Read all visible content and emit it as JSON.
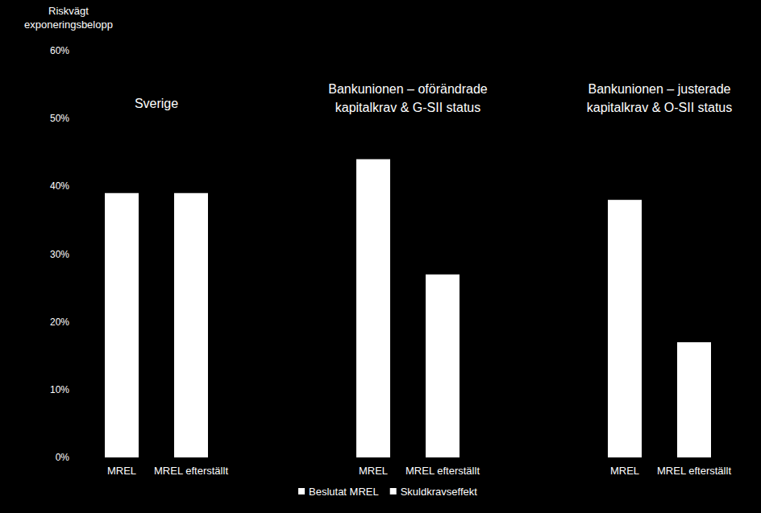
{
  "chart_data": {
    "type": "bar",
    "y_label": "Riskvägt exponeringsbelopp",
    "groups": [
      [
        "Sverige"
      ],
      [
        "Bankunionen – oförändrade",
        "kapitalkrav & G-SII status"
      ],
      [
        "Bankunionen – justerade",
        "kapitalkrav & O-SII status"
      ]
    ],
    "categories": [
      "MREL",
      "MREL efterställt",
      "MREL",
      "MREL efterställt",
      "MREL",
      "MREL efterställt"
    ],
    "series": [
      {
        "name": "Beslutat MREL",
        "color": "#ffffff",
        "values": [
          39,
          39,
          44,
          27,
          38,
          17
        ]
      },
      {
        "name": "Skuldkravseffekt",
        "color": "#ffffff",
        "values": [
          null,
          null,
          null,
          null,
          null,
          null
        ]
      }
    ],
    "stacked": true,
    "ylim": [
      0,
      60
    ],
    "yticks": [
      {
        "value": 0,
        "label": "0%"
      },
      {
        "value": 10,
        "label": "10%"
      },
      {
        "value": 20,
        "label": "20%"
      },
      {
        "value": 30,
        "label": "30%"
      },
      {
        "value": 40,
        "label": "40%"
      },
      {
        "value": 50,
        "label": "50%"
      },
      {
        "value": 60,
        "label": "60%"
      }
    ],
    "grid": false,
    "legend": "bottom"
  }
}
